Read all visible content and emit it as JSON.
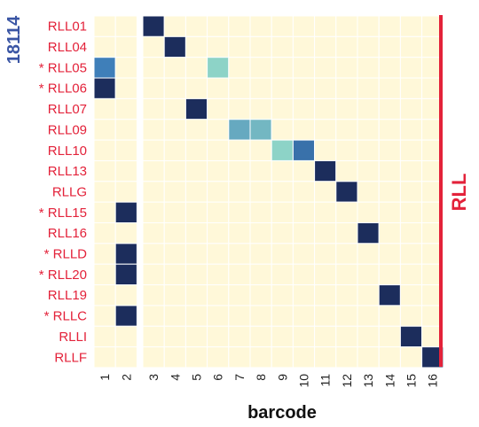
{
  "chart_data": {
    "type": "heatmap",
    "xlabel": "barcode",
    "sample_label": "18114",
    "group_label": "RLL",
    "columns": [
      "1",
      "2",
      "3",
      "4",
      "5",
      "6",
      "7",
      "8",
      "9",
      "10",
      "11",
      "12",
      "13",
      "14",
      "15",
      "16"
    ],
    "rows": [
      "RLL01",
      "RLL04",
      "* RLL05",
      "* RLL06",
      "RLL07",
      "RLL09",
      "RLL10",
      "RLL13",
      "RLLG",
      "* RLL15",
      "RLL16",
      "* RLLD",
      "* RLL20",
      "RLL19",
      "* RLLC",
      "RLLI",
      "RLLF"
    ],
    "cells": [
      {
        "row": 0,
        "col": 2,
        "value": 1.0
      },
      {
        "row": 1,
        "col": 3,
        "value": 1.0
      },
      {
        "row": 2,
        "col": 0,
        "value": 0.7
      },
      {
        "row": 2,
        "col": 5,
        "value": 0.4
      },
      {
        "row": 3,
        "col": 0,
        "value": 1.0
      },
      {
        "row": 4,
        "col": 4,
        "value": 1.0
      },
      {
        "row": 5,
        "col": 6,
        "value": 0.55
      },
      {
        "row": 5,
        "col": 7,
        "value": 0.5
      },
      {
        "row": 6,
        "col": 8,
        "value": 0.4
      },
      {
        "row": 6,
        "col": 9,
        "value": 0.75
      },
      {
        "row": 7,
        "col": 10,
        "value": 1.0
      },
      {
        "row": 8,
        "col": 11,
        "value": 1.0
      },
      {
        "row": 9,
        "col": 1,
        "value": 1.0
      },
      {
        "row": 10,
        "col": 12,
        "value": 1.0
      },
      {
        "row": 11,
        "col": 1,
        "value": 1.0
      },
      {
        "row": 12,
        "col": 1,
        "value": 1.0
      },
      {
        "row": 13,
        "col": 13,
        "value": 1.0
      },
      {
        "row": 14,
        "col": 1,
        "value": 1.0
      },
      {
        "row": 15,
        "col": 14,
        "value": 1.0
      },
      {
        "row": 16,
        "col": 15,
        "value": 1.0
      }
    ],
    "value_range": [
      0,
      1
    ],
    "colors": {
      "background": "#fff8d9",
      "gridline": "#ffffff",
      "low": "#8dd3c7",
      "mid": "#3f7fb9",
      "high": "#1c2d5c",
      "row_label": "#e3223a",
      "sample_label": "#3a55a4",
      "group_bar": "#e3223a"
    },
    "column_split_after": 2,
    "grid": true,
    "legend": "none"
  }
}
